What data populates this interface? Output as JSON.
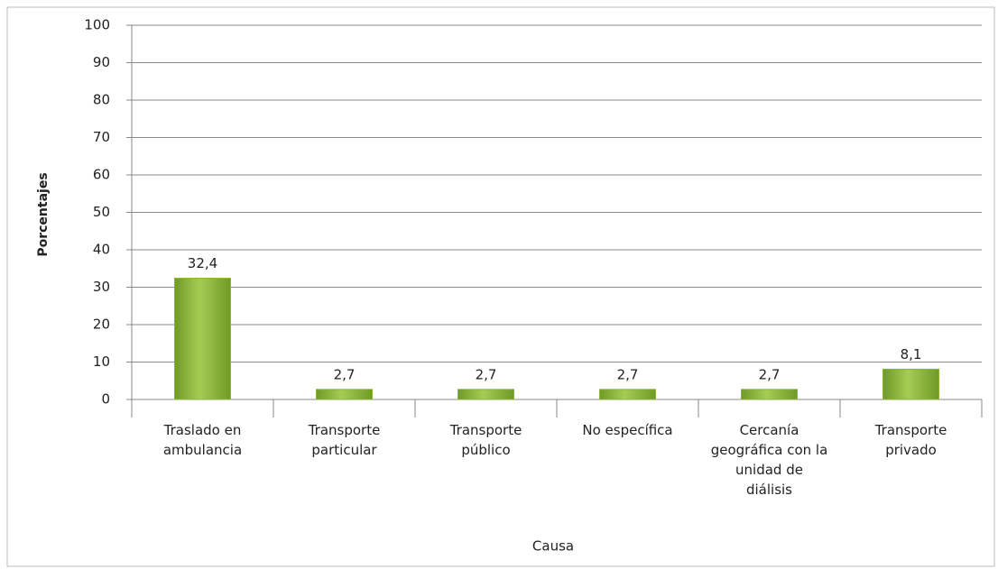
{
  "chart_data": {
    "type": "bar",
    "categories": [
      "Traslado en ambulancia",
      "Transporte particular",
      "Transporte público",
      "No específica",
      "Cercanía geográfica con la unidad de diálisis",
      "Transporte privado"
    ],
    "values": [
      32.4,
      2.7,
      2.7,
      2.7,
      2.7,
      8.1
    ],
    "value_labels": [
      "32,4",
      "2,7",
      "2,7",
      "2,7",
      "2,7",
      "8,1"
    ],
    "color": "#8cb43a",
    "ylabel": "Porcentajes",
    "xlabel": "Causa",
    "ylim": [
      0,
      100
    ],
    "yticks": [
      0,
      10,
      20,
      30,
      40,
      50,
      60,
      70,
      80,
      90,
      100
    ],
    "grid": true
  }
}
